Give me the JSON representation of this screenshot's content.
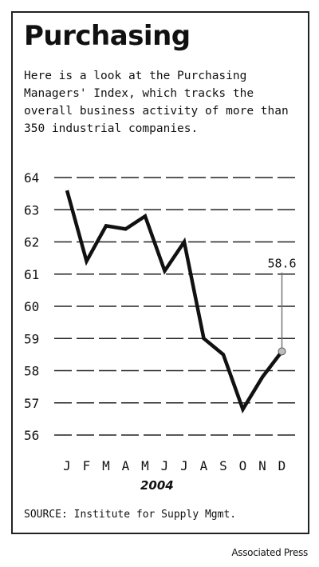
{
  "header": {
    "title": "Purchasing",
    "description": "Here is a look at the Purchasing Managers' Index, which tracks the overall business activity of more than 350 industrial companies."
  },
  "footer": {
    "source": "SOURCE: Institute for Supply Mgmt.",
    "credit": "Associated Press"
  },
  "chart_data": {
    "type": "line",
    "categories": [
      "J",
      "F",
      "M",
      "A",
      "M",
      "J",
      "J",
      "A",
      "S",
      "O",
      "N",
      "D"
    ],
    "values": [
      63.6,
      61.4,
      62.5,
      62.4,
      62.8,
      61.1,
      62.0,
      59.0,
      58.5,
      56.8,
      57.8,
      58.6
    ],
    "xlabel": "2004",
    "ylabel": "",
    "ylim": [
      56,
      64
    ],
    "yticks": [
      56,
      57,
      58,
      59,
      60,
      61,
      62,
      63,
      64
    ],
    "grid": true,
    "annotation": {
      "index": 11,
      "label": "58.6"
    },
    "colors": {
      "line": "#111111",
      "grid": "#222222",
      "marker": "#bdbdbd",
      "callout": "#777777"
    }
  }
}
